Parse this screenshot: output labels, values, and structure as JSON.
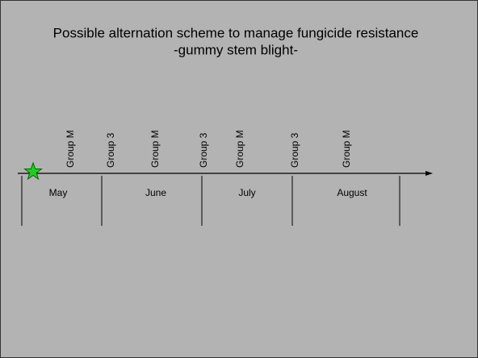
{
  "title": [
    "Possible alternation scheme to manage fungicide resistance",
    "-gummy stem blight-"
  ],
  "applications": [
    "Group M",
    "Group 3",
    "Group M",
    "Group 3",
    "Group M",
    "Group 3",
    "Group M"
  ],
  "months": [
    "May",
    "June",
    "July",
    "August"
  ]
}
